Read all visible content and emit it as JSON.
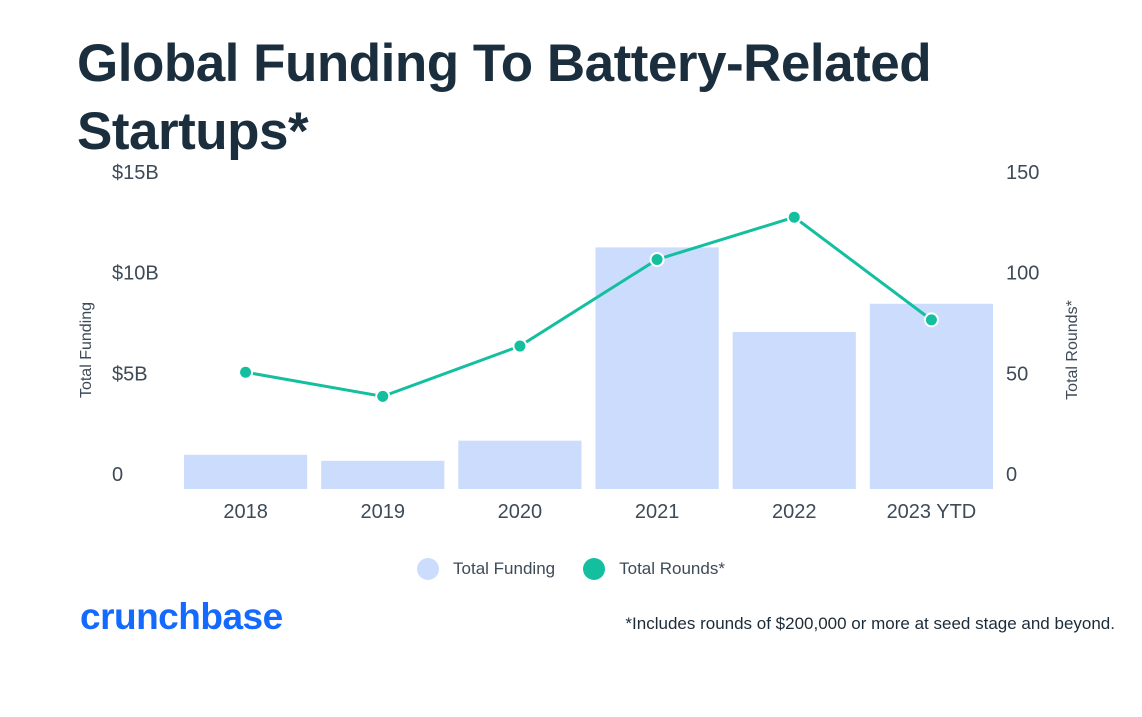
{
  "title": "Global Funding To Battery-Related Startups*",
  "colors": {
    "title": "#1b2e3d",
    "bar": "#cbdcfc",
    "line": "#14bfa0",
    "logo": "#146aff"
  },
  "chart_data": {
    "type": "bar+line",
    "categories": [
      "2018",
      "2019",
      "2020",
      "2021",
      "2022",
      "2023 YTD"
    ],
    "series": [
      {
        "name": "Total Funding",
        "axis": "left",
        "type": "bar",
        "values": [
          1.7,
          1.4,
          2.4,
          12.0,
          7.8,
          9.2
        ],
        "unit": "$B"
      },
      {
        "name": "Total Rounds*",
        "axis": "right",
        "type": "line",
        "values": [
          58,
          46,
          71,
          114,
          135,
          84
        ]
      }
    ],
    "left_axis": {
      "label": "Total Funding",
      "range": [
        0,
        15
      ],
      "ticks": [
        0,
        5,
        10,
        15
      ],
      "tick_labels": [
        "0",
        "$5B",
        "$10B",
        "$15B"
      ]
    },
    "right_axis": {
      "label": "Total Rounds*",
      "range": [
        0,
        150
      ],
      "ticks": [
        0,
        50,
        100,
        150
      ],
      "tick_labels": [
        "0",
        "50",
        "100",
        "150"
      ]
    },
    "grid": false,
    "legend_position": "bottom-center"
  },
  "legend": [
    {
      "label": "Total Funding"
    },
    {
      "label": "Total Rounds*"
    }
  ],
  "logo_text": "crunchbase",
  "footnote": "*Includes rounds of $200,000 or more at seed stage and beyond."
}
